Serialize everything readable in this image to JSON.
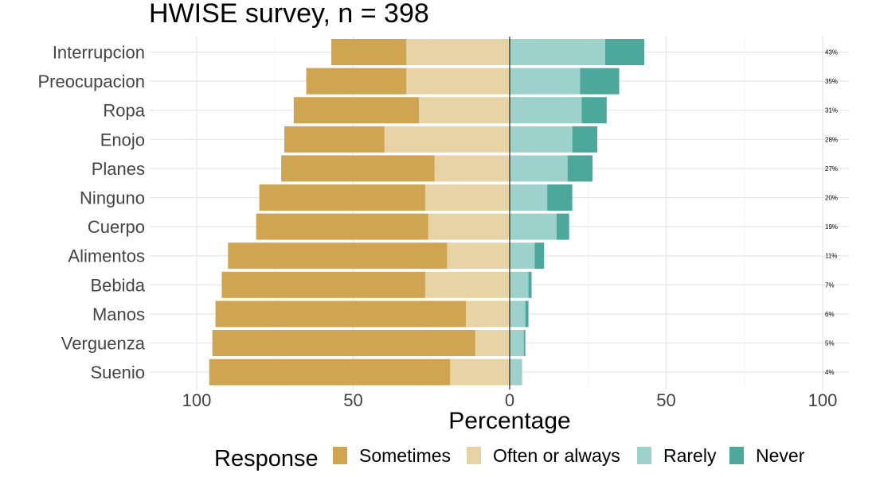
{
  "chart_data": {
    "type": "bar",
    "title": "HWISE survey, n = 398",
    "xlabel": "Percentage",
    "ylabel": "",
    "xlim": [
      -100,
      100
    ],
    "x_ticks": [
      -100,
      -50,
      0,
      50,
      100
    ],
    "x_tick_labels": [
      "100",
      "50",
      "0",
      "50",
      "100"
    ],
    "grid": true,
    "orientation": "horizontal",
    "stacking": "diverging",
    "legend": {
      "title": "Response",
      "position": "bottom",
      "entries": [
        "Sometimes",
        "Often or always",
        "Rarely",
        "Never"
      ]
    },
    "categories": [
      "Interrupcion",
      "Preocupacion",
      "Ropa",
      "Enojo",
      "Planes",
      "Ninguno",
      "Cuerpo",
      "Alimentos",
      "Bebida",
      "Manos",
      "Verguenza",
      "Suenio"
    ],
    "series": [
      {
        "name": "Sometimes",
        "side": "left",
        "color": "#D0A552",
        "values": [
          24,
          32,
          40,
          32,
          49,
          53,
          55,
          70,
          65,
          80,
          84,
          77
        ]
      },
      {
        "name": "Often or always",
        "side": "left",
        "color": "#E7D3A5",
        "values": [
          33,
          33,
          29,
          40,
          24,
          27,
          26,
          20,
          27,
          14,
          11,
          19
        ]
      },
      {
        "name": "Rarely",
        "side": "right",
        "color": "#9DD2CC",
        "values": [
          30.5,
          22.5,
          23,
          20,
          18.5,
          12,
          15,
          8,
          6,
          5,
          4.5,
          4
        ]
      },
      {
        "name": "Never",
        "side": "right",
        "color": "#4DA89C",
        "values": [
          12.5,
          12.5,
          8,
          8,
          8,
          8,
          4,
          3,
          1,
          1,
          0.5,
          0
        ]
      }
    ],
    "right_labels": [
      "43%",
      "35%",
      "31%",
      "28%",
      "27%",
      "20%",
      "19%",
      "11%",
      "7%",
      "6%",
      "5%",
      "4%"
    ]
  }
}
